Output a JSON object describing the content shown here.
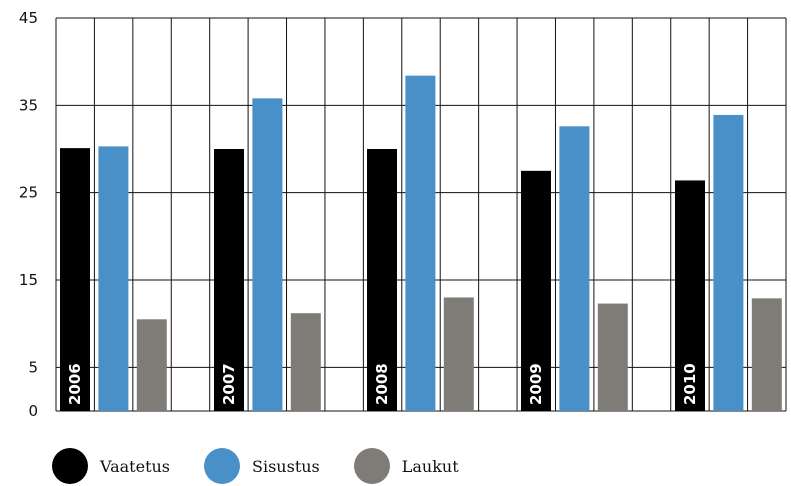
{
  "chart_data": {
    "type": "bar",
    "categories": [
      "2006",
      "2007",
      "2008",
      "2009",
      "2010"
    ],
    "series": [
      {
        "name": "Vaatetus",
        "color": "#000000",
        "values": [
          30.1,
          30.0,
          30.0,
          27.5,
          26.4
        ]
      },
      {
        "name": "Sisustus",
        "color": "#4a90c8",
        "values": [
          30.3,
          35.8,
          38.4,
          32.6,
          33.9
        ]
      },
      {
        "name": "Laukut",
        "color": "#7f7c77",
        "values": [
          10.5,
          11.2,
          13.0,
          12.3,
          12.9
        ]
      }
    ],
    "y_ticks": [
      "0",
      "5",
      "15",
      "25",
      "35",
      "45"
    ],
    "ylim": [
      0,
      45
    ],
    "grid": true,
    "legend_position": "bottom-left"
  }
}
